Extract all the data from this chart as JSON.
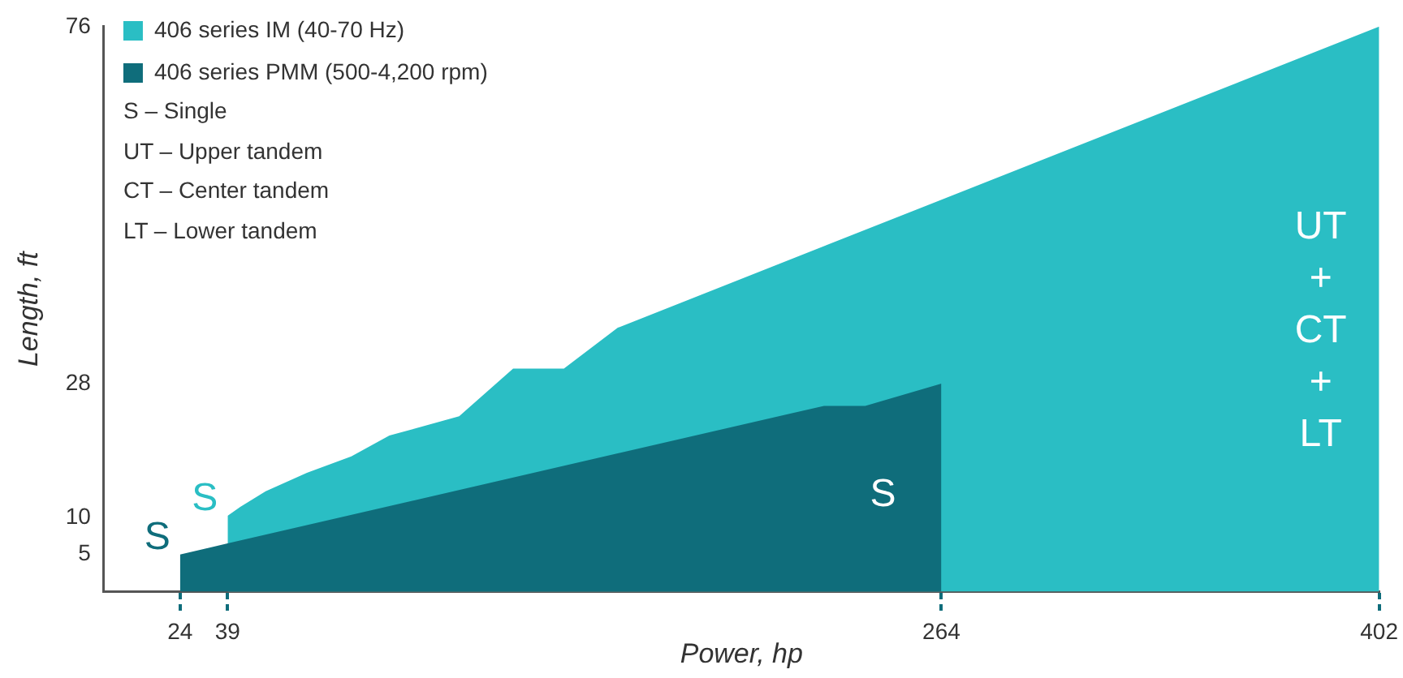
{
  "chart_data": {
    "type": "area",
    "xlabel": "Power, hp",
    "ylabel": "Length, ft",
    "xlim": [
      0,
      402
    ],
    "ylim": [
      0,
      76
    ],
    "xticks": [
      24,
      39,
      264,
      402
    ],
    "yticks": [
      5,
      10,
      28,
      76
    ],
    "grid": false,
    "legend": "top left",
    "series": [
      {
        "name": "406 series IM (40-70 Hz)",
        "color": "#2abec4",
        "x": [
          39,
          43,
          51,
          64,
          78,
          90,
          112,
          129,
          145,
          162,
          402
        ],
        "values": [
          10.2,
          11.4,
          13.5,
          16,
          18.2,
          21,
          23.6,
          30,
          30,
          35.5,
          76
        ]
      },
      {
        "name": "406 series PMM (500-4,200 rpm)",
        "color": "#0f6d7b",
        "x": [
          24,
          39,
          227,
          240,
          264
        ],
        "values": [
          5,
          6.5,
          25,
          25,
          28
        ]
      }
    ],
    "annotations": [
      "S – Single",
      "UT – Upper tandem",
      "CT – Center tandem",
      "LT – Lower tandem",
      {
        "text": "S",
        "x": 24,
        "y": 5
      },
      {
        "text": "S",
        "x": 39,
        "y": 10.2
      },
      {
        "text": "S",
        "x": 264,
        "y": 13
      },
      {
        "text": "UT\n+\nCT\n+\nLT",
        "x": 402,
        "y": 35
      }
    ]
  }
}
